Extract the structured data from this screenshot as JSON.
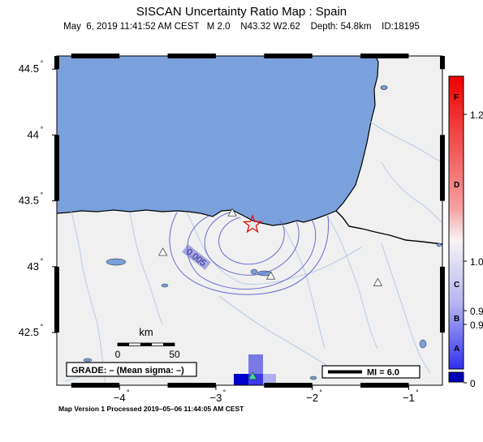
{
  "header": {
    "title": "SISCAN Uncertainty Ratio Map : Spain",
    "subtitle": "May  6, 2019 11:41:52 AM CEST   M 2.0    N43.32 W2.62    Depth: 54.8km    ID:18195"
  },
  "axes": {
    "y_ticks": [
      {
        "label": "44.5",
        "lat": 44.5
      },
      {
        "label": "44",
        "lat": 44.0
      },
      {
        "label": "43.5",
        "lat": 43.5
      },
      {
        "label": "43",
        "lat": 43.0
      },
      {
        "label": "42.5",
        "lat": 42.5
      }
    ],
    "x_ticks": [
      {
        "label": "−4",
        "lon": -4
      },
      {
        "label": "−3",
        "lon": -3
      },
      {
        "label": "−2",
        "lon": -2
      },
      {
        "label": "−1",
        "lon": -1
      }
    ],
    "lon_range": [
      -4.65,
      -0.65
    ],
    "lat_range": [
      42.1,
      44.6
    ],
    "degree_mark": "˚"
  },
  "map": {
    "epicenter": {
      "lat": 43.32,
      "lon": -2.62,
      "symbol": "star-icon"
    },
    "contour_label": "0.005",
    "stations": [
      {
        "lon": -2.83,
        "lat": 43.41
      },
      {
        "lon": -3.55,
        "lat": 43.11
      },
      {
        "lon": -2.43,
        "lat": 42.93
      },
      {
        "lon": -1.32,
        "lat": 42.88
      },
      {
        "lon": -2.62,
        "lat": 42.17
      }
    ],
    "colors": {
      "sea": "#7ba1dc",
      "land": "#f0f0f0",
      "coast": "#000000",
      "rivers": "#a9c4e8",
      "contour": "#6a6ad0"
    }
  },
  "scale_bar": {
    "title": "km",
    "left_label": "0",
    "right_label": "50"
  },
  "grade_box": {
    "text": "GRADE: – (Mean sigma: –)"
  },
  "mi_legend": {
    "text": "MI = 6.0"
  },
  "colorbar": {
    "letters": [
      "F",
      "D",
      "C",
      "B",
      "A"
    ],
    "values": [
      "1.2",
      "1.0",
      "0.9",
      "0.9",
      "0"
    ]
  },
  "footer": {
    "text": "Map Version 1 Processed 2019–05–06 11:44:05 AM CEST"
  }
}
